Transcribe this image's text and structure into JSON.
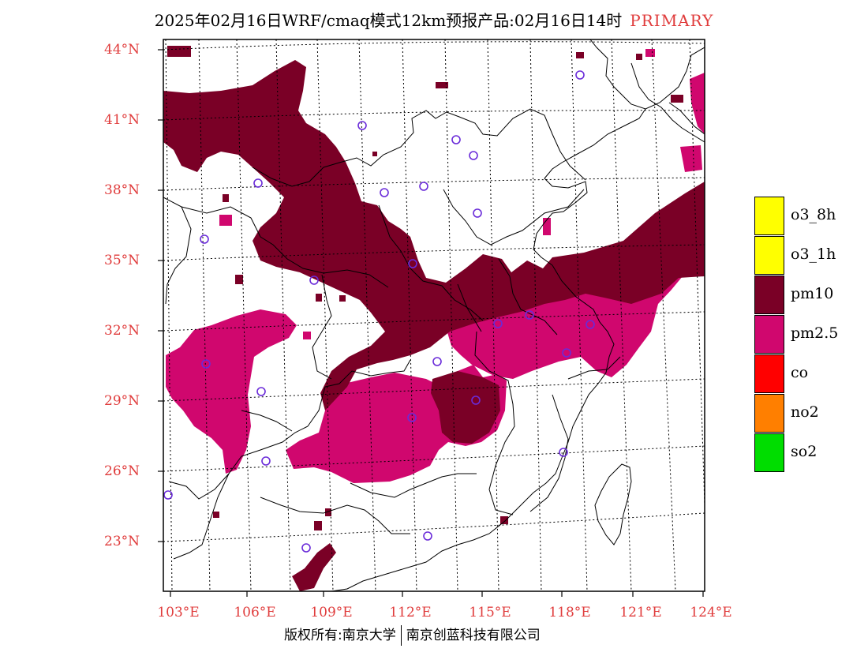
{
  "title": {
    "main": "2025年02月16日WRF/cmaq模式12km预报产品:02月16日14时",
    "tag": "PRIMARY"
  },
  "axes": {
    "lat_labels": [
      "44°N",
      "41°N",
      "38°N",
      "35°N",
      "32°N",
      "29°N",
      "26°N",
      "23°N"
    ],
    "lon_labels": [
      "103°E",
      "106°E",
      "109°E",
      "112°E",
      "115°E",
      "118°E",
      "121°E",
      "124°E"
    ]
  },
  "legend": [
    {
      "label": "o3_8h",
      "color": "#ffff00"
    },
    {
      "label": "o3_1h",
      "color": "#ffff00"
    },
    {
      "label": "pm10",
      "color": "#7a0026"
    },
    {
      "label": "pm2.5",
      "color": "#d0076e"
    },
    {
      "label": "co",
      "color": "#ff0000"
    },
    {
      "label": "no2",
      "color": "#ff7f00"
    },
    {
      "label": "so2",
      "color": "#00dd00"
    }
  ],
  "footer": {
    "left": "版权所有:南京大学",
    "right": "南京创蓝科技有限公司"
  }
}
